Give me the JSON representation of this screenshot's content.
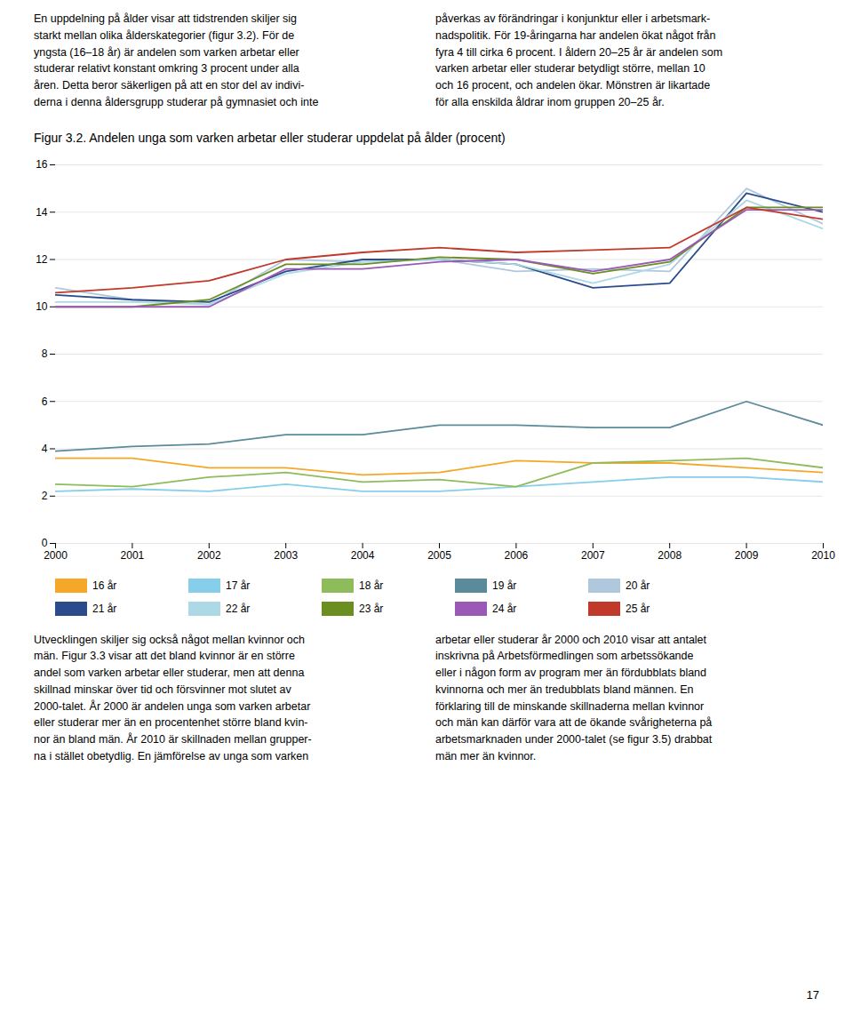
{
  "chart_data": {
    "type": "line",
    "title": "Figur 3.2. Andelen unga som varken arbetar eller studerar uppdelat på ålder (procent)",
    "x": [
      2000,
      2001,
      2002,
      2003,
      2004,
      2005,
      2006,
      2007,
      2008,
      2009,
      2010
    ],
    "series": [
      {
        "name": "16 år",
        "color": "#F5A828",
        "values": [
          3.6,
          3.6,
          3.2,
          3.2,
          2.9,
          3.0,
          3.5,
          3.4,
          3.4,
          3.2,
          3.0
        ]
      },
      {
        "name": "17 år",
        "color": "#87CEEB",
        "values": [
          2.2,
          2.3,
          2.2,
          2.5,
          2.2,
          2.2,
          2.4,
          2.6,
          2.8,
          2.8,
          2.6
        ]
      },
      {
        "name": "18 år",
        "color": "#8FBC5A",
        "values": [
          2.5,
          2.4,
          2.8,
          3.0,
          2.6,
          2.7,
          2.4,
          3.4,
          3.5,
          3.6,
          3.2
        ]
      },
      {
        "name": "19 år",
        "color": "#5B8A9A",
        "values": [
          3.9,
          4.1,
          4.2,
          4.6,
          4.6,
          5.0,
          5.0,
          4.9,
          4.9,
          6.0,
          5.0
        ]
      },
      {
        "name": "20 år",
        "color": "#B0C8DE",
        "values": [
          10.8,
          10.3,
          10.1,
          12.0,
          11.9,
          12.0,
          11.5,
          11.6,
          11.5,
          15.0,
          13.5
        ]
      },
      {
        "name": "21 år",
        "color": "#2B4C8C",
        "values": [
          10.5,
          10.3,
          10.2,
          11.5,
          12.0,
          12.0,
          11.8,
          10.8,
          11.0,
          14.8,
          14.0
        ]
      },
      {
        "name": "22 år",
        "color": "#ADD8E6",
        "values": [
          10.2,
          10.2,
          10.1,
          11.4,
          11.9,
          12.0,
          11.8,
          11.0,
          11.8,
          14.5,
          13.3
        ]
      },
      {
        "name": "23 år",
        "color": "#6B8E23",
        "values": [
          10.0,
          10.0,
          10.3,
          11.8,
          11.8,
          12.1,
          12.0,
          11.4,
          11.9,
          14.2,
          14.2
        ]
      },
      {
        "name": "24 år",
        "color": "#9B59B6",
        "values": [
          10.0,
          10.0,
          10.0,
          11.6,
          11.6,
          11.9,
          12.0,
          11.5,
          12.0,
          14.1,
          14.1
        ]
      },
      {
        "name": "25 år",
        "color": "#C0392B",
        "values": [
          10.6,
          10.8,
          11.1,
          12.0,
          12.3,
          12.5,
          12.3,
          12.4,
          12.5,
          14.2,
          13.7
        ]
      }
    ],
    "xlim": [
      2000,
      2010
    ],
    "xticks": [
      2000,
      2001,
      2002,
      2003,
      2004,
      2005,
      2006,
      2007,
      2008,
      2009,
      2010
    ],
    "ylim": [
      0,
      16
    ],
    "yticks": [
      0,
      2,
      4,
      6,
      8,
      10,
      12,
      14,
      16
    ],
    "grid": "y",
    "legend": "bottom"
  },
  "text_blocks": [
    "En uppdelning på ålder visar att tidstrenden skiljer sig\nstarkt mellan olika ålderskategorier (figur 3.2). För de\nyngsta (16–18 år) är andelen som varken arbetar eller\nstuderar relativt konstant omkring 3 procent under alla\nåren. Detta beror säkerligen på att en stor del av indivi-\nderna i denna åldersgrupp studerar på gymnasiet och inte",
    "påverkas av förändringar i konjunktur eller i arbetsmark-\nnadspolitik. För 19-åringarna har andelen ökat något från\nfyra 4 till cirka 6 procent. I åldern 20–25 år är andelen som\nvarken arbetar eller studerar betydligt större, mellan 10\noch 16 procent, och andelen ökar. Mönstren är likartade\nför alla enskilda åldrar inom gruppen 20–25 år.",
    "Utvecklingen skiljer sig också något mellan kvinnor och\nmän. Figur 3.3 visar att det bland kvinnor är en större\nandel som varken arbetar eller studerar, men att denna\nskillnad minskar över tid och försvinner mot slutet av\n2000-talet. År 2000 är andelen unga som varken arbetar\neller studerar mer än en procentenhet större bland kvin-\nnor än bland män. År 2010 är skillnaden mellan grupper-\nna i stället obetydlig. En jämförelse av unga som varken",
    "arbetar eller studerar år 2000 och 2010 visar att antalet\ninskrivna på Arbetsförmedlingen som arbetssökande\neller i någon form av program mer än fördubblats bland\nkvinnorna och mer än tredubblats bland männen. En\nförklaring till de minskande skillnaderna mellan kvinnor\noch män kan därför vara att de ökande svårigheterna på\narbetsmarknaden under 2000-talet (se figur 3.5) drabbat\nmän mer än kvinnor."
  ],
  "page_number": "17"
}
